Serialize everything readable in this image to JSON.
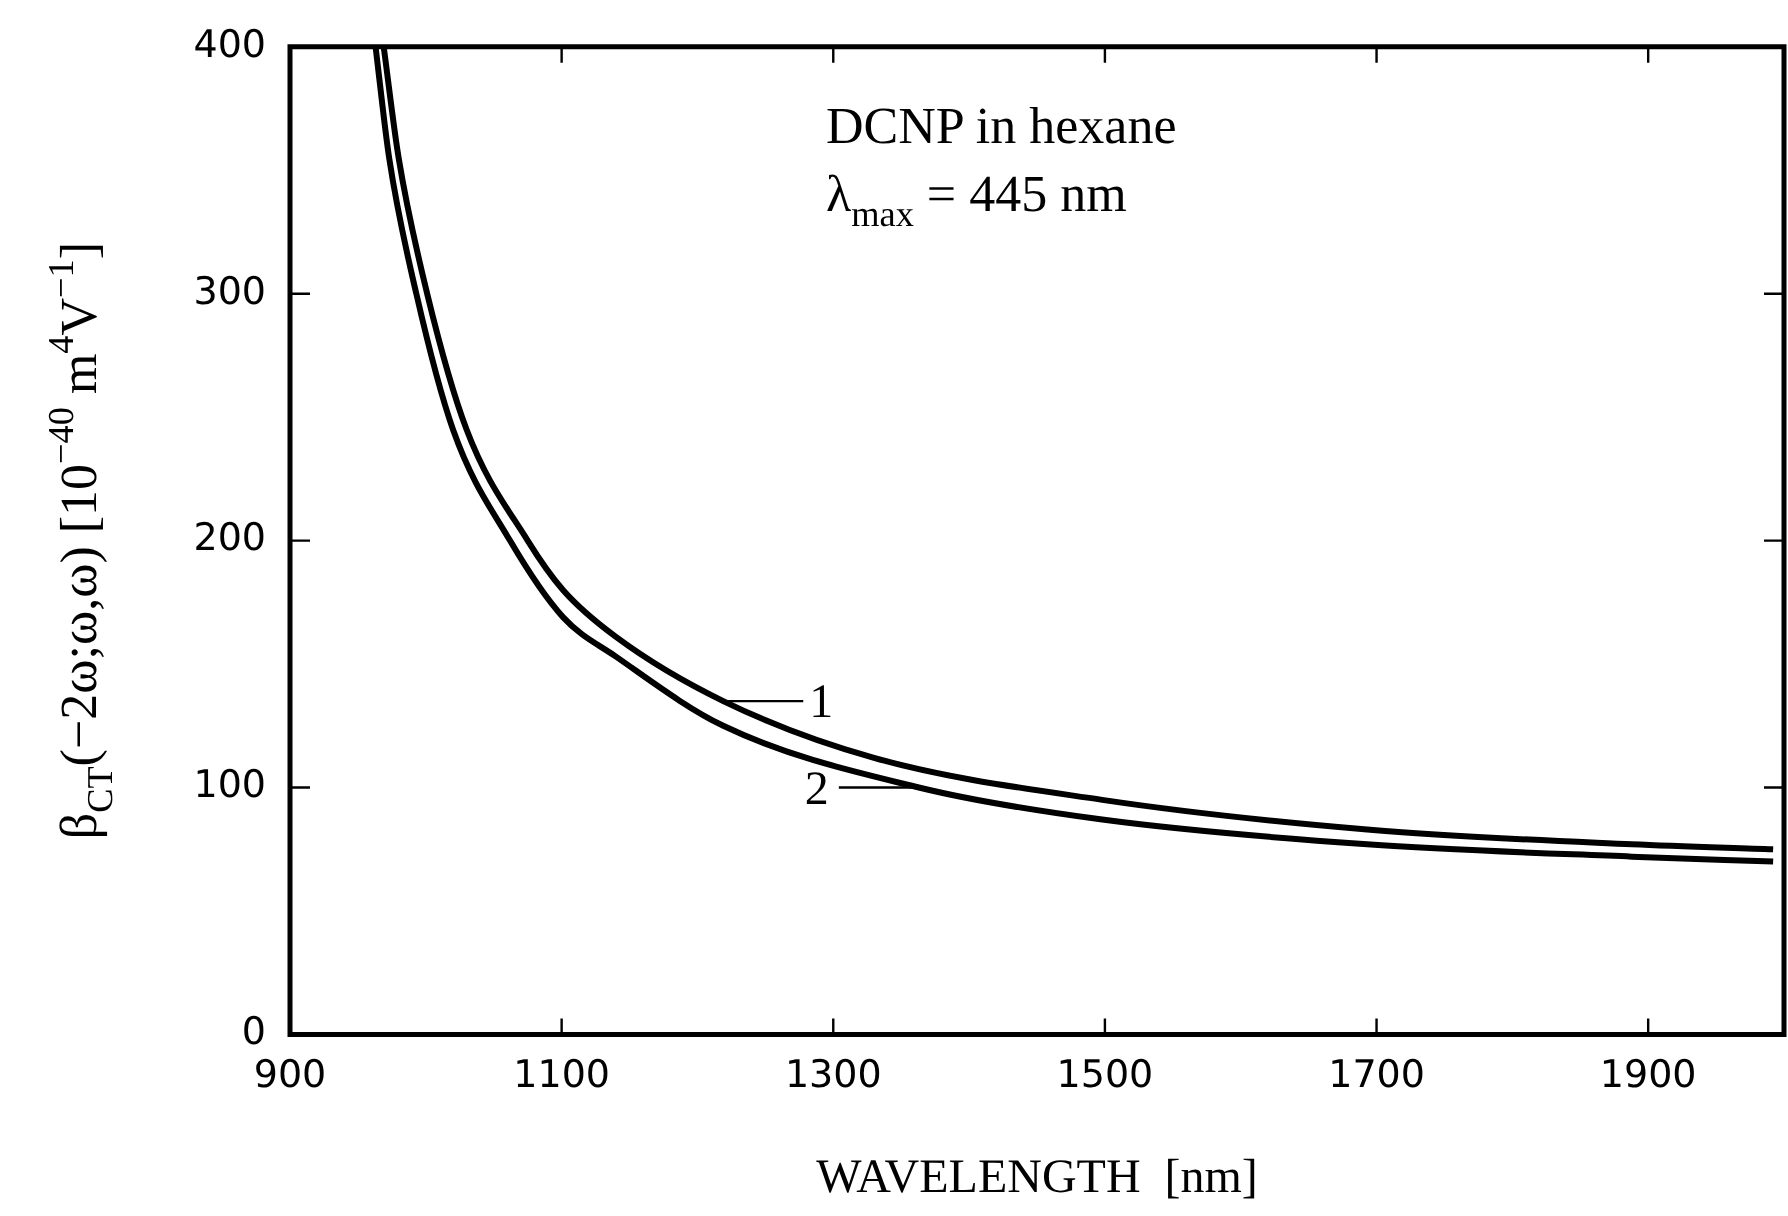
{
  "chart_data": {
    "type": "line",
    "xlabel": "WAVELENGTH  [nm]",
    "ylabel": "β$_{CT}$(−2ω;ω,ω) [10$^{−40}$ m$^{4}$V$^{−1}$]",
    "xlim": [
      900,
      2000
    ],
    "xticks": [
      900,
      1100,
      1300,
      1500,
      1700,
      1900
    ],
    "ylim": [
      0,
      400
    ],
    "yticks": [
      0,
      100,
      200,
      300,
      400
    ],
    "grid": false,
    "legend": false,
    "marker": "none",
    "line_style": "solid",
    "series": [
      {
        "color": "#000000",
        "x": [
          969,
          980,
          1001,
          1030,
          1075,
          1101,
          1140,
          1219,
          1330,
          1498,
          1693,
          1888,
          1992
        ],
        "values": [
          400,
          355,
          300,
          245,
          200,
          180,
          161,
          135,
          112,
          95,
          83,
          77,
          75
        ]
      },
      {
        "color": "#000000",
        "x": [
          963,
          973,
          993,
          1020,
          1062,
          1101,
          1140,
          1219,
          1363,
          1498,
          1693,
          1888,
          1992
        ],
        "values": [
          400,
          355,
          300,
          245,
          200,
          169,
          153,
          125,
          100,
          87,
          77,
          72,
          70
        ]
      }
    ],
    "annotations": [
      {
        "text": "1",
        "x": 1219,
        "y": 135
      },
      {
        "text": "2",
        "x": 1363,
        "y": 100
      },
      "DCNP in hexane",
      "λ$_{max}$ = 445 nm"
    ]
  }
}
